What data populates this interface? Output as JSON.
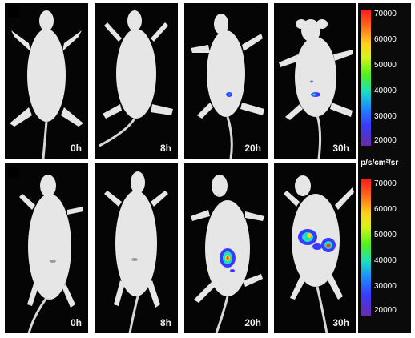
{
  "rows": [
    {
      "panels": [
        {
          "time": "0h",
          "signal": "none"
        },
        {
          "time": "8h",
          "signal": "none"
        },
        {
          "time": "20h",
          "signal": "small"
        },
        {
          "time": "30h",
          "signal": "small"
        }
      ]
    },
    {
      "panels": [
        {
          "time": "0h",
          "signal": "none"
        },
        {
          "time": "8h",
          "signal": "none"
        },
        {
          "time": "20h",
          "signal": "medium"
        },
        {
          "time": "30h",
          "signal": "large"
        }
      ]
    }
  ],
  "scales": [
    {
      "ticks": [
        "70000",
        "60000",
        "50000",
        "40000",
        "30000",
        "20000"
      ]
    },
    {
      "ticks": [
        "70000",
        "60000",
        "50000",
        "40000",
        "30000",
        "20000"
      ]
    }
  ],
  "unit": "p/s/cm²/sr",
  "colors": {
    "background": "#050505",
    "mouse": "#e6e6e6",
    "signal_low": "#3a3aff",
    "signal_mid": "#1ae0c0",
    "signal_high": "#ff3a1a"
  }
}
